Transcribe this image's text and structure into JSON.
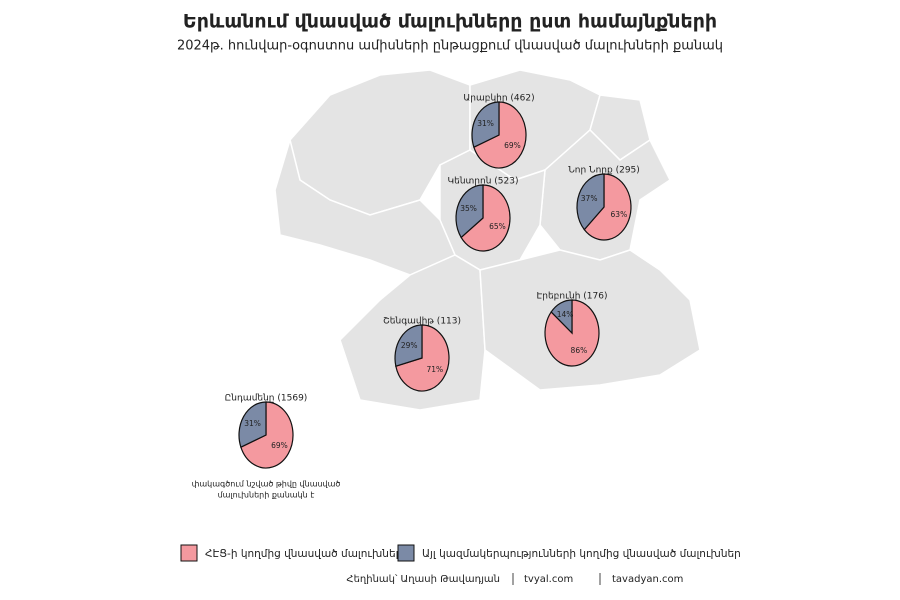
{
  "title": "Երևանում վնասված մալուխները ըստ համայնքների",
  "subtitle": "2024թ. հունվար-օգոստոս ամիսների ընթացքում վնասված մալուխների քանակ",
  "chart_data": {
    "type": "pie",
    "series": [
      {
        "name": "ՀԷՑ-ի կողմից վնասված մալուխներ",
        "color": "#f4999f"
      },
      {
        "name": "Այլ կազմակերպությունների կողմից վնասված մալուխներ",
        "color": "#7b8aa6"
      }
    ],
    "pies": [
      {
        "label": "Արաբկիր (462)",
        "values": [
          69,
          31
        ],
        "value_labels": [
          "69%",
          "31%"
        ]
      },
      {
        "label": "Կենտրոն (523)",
        "values": [
          65,
          35
        ],
        "value_labels": [
          "65%",
          "35%"
        ]
      },
      {
        "label": "Նոր Նորք (295)",
        "values": [
          63,
          37
        ],
        "value_labels": [
          "63%",
          "37%"
        ]
      },
      {
        "label": "Էրեբունի (176)",
        "values": [
          86,
          14
        ],
        "value_labels": [
          "86%",
          "14%"
        ]
      },
      {
        "label": "Շենգավիթ (113)",
        "values": [
          71,
          29
        ],
        "value_labels": [
          "71%",
          "29%"
        ]
      },
      {
        "label": "Ընդամենը (1569)",
        "values": [
          69,
          31
        ],
        "value_labels": [
          "69%",
          "31%"
        ]
      }
    ]
  },
  "note": [
    "փակագծում նշված թիվը վնասված",
    "մալուխների քանակն է"
  ],
  "credits": [
    "Հեղինակ՝ Աղասի Թավադյան",
    "tvyal.com",
    "tavadyan.com"
  ]
}
